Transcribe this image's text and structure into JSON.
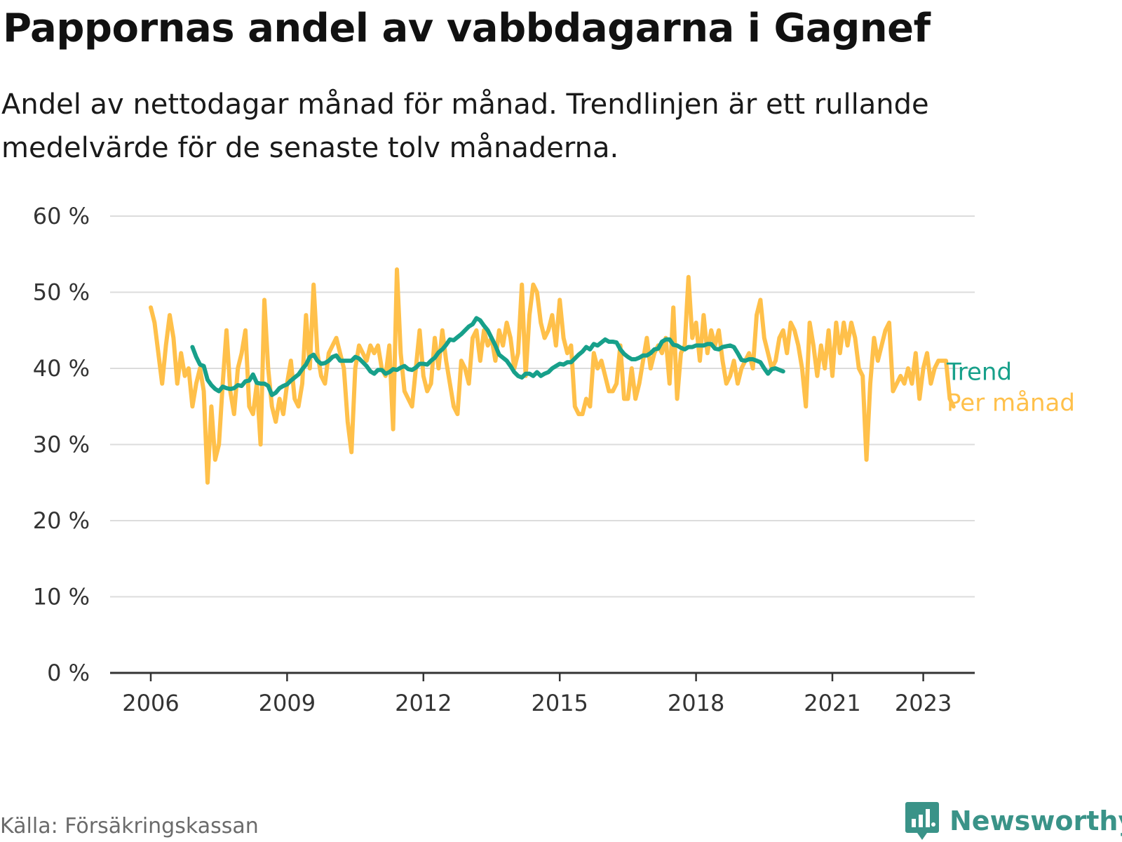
{
  "title": "Pappornas andel av vabbdagarna i Gagnef",
  "subtitle": "Andel av nettodagar månad för månad. Trendlinjen är ett rullande medelvärde för de senaste tolv månaderna.",
  "source": "Källa: Försäkringskassan",
  "brand": "Newsworthy",
  "colors": {
    "trend": "#17a08a",
    "monthly": "#ffc04a",
    "grid": "#dcdcdc",
    "axis": "#333333",
    "brand": "#3a9388"
  },
  "chart_data": {
    "type": "line",
    "title": "Pappornas andel av vabbdagarna i Gagnef",
    "ylabel": "",
    "xlabel": "",
    "ylim": [
      0,
      60
    ],
    "y_ticks": [
      0,
      10,
      20,
      30,
      40,
      50,
      60
    ],
    "y_tick_labels": [
      "0 %",
      "10 %",
      "20 %",
      "30 %",
      "40 %",
      "50 %",
      "60 %"
    ],
    "x_ticks": [
      2006,
      2009,
      2012,
      2015,
      2018,
      2021,
      2023
    ],
    "x_tick_labels": [
      "2006",
      "2009",
      "2012",
      "2015",
      "2018",
      "2021",
      "2023"
    ],
    "grid": true,
    "legend": "direct labels at line ends",
    "series": [
      {
        "name": "Per månad",
        "start": "2006-01",
        "values": [
          48,
          46,
          42,
          38,
          43,
          47,
          44,
          38,
          42,
          39,
          40,
          35,
          38,
          40,
          37,
          25,
          35,
          28,
          30,
          38,
          45,
          37,
          34,
          40,
          42,
          45,
          35,
          34,
          38,
          30,
          49,
          40,
          35,
          33,
          36,
          34,
          38,
          41,
          36,
          35,
          38,
          47,
          40,
          51,
          42,
          39,
          38,
          42,
          43,
          44,
          42,
          40,
          33,
          29,
          40,
          43,
          42,
          41,
          43,
          42,
          43,
          40,
          39,
          43,
          32,
          53,
          42,
          37,
          36,
          35,
          40,
          45,
          39,
          37,
          38,
          44,
          40,
          45,
          41,
          38,
          35,
          34,
          41,
          40,
          38,
          44,
          45,
          41,
          45,
          43,
          44,
          41,
          45,
          43,
          46,
          44,
          40,
          42,
          51,
          39,
          47,
          51,
          50,
          46,
          44,
          45,
          47,
          43,
          49,
          44,
          42,
          43,
          35,
          34,
          34,
          36,
          35,
          42,
          40,
          41,
          39,
          37,
          37,
          38,
          43,
          36,
          36,
          40,
          36,
          38,
          41,
          44,
          40,
          42,
          43,
          42,
          44,
          38,
          48,
          36,
          42,
          43,
          52,
          44,
          46,
          41,
          47,
          42,
          45,
          43,
          45,
          41,
          38,
          39,
          41,
          38,
          40,
          41,
          42,
          40,
          47,
          49,
          44,
          42,
          40,
          41,
          44,
          45,
          42,
          46,
          45,
          43,
          40,
          35,
          46,
          43,
          39,
          43,
          40,
          45,
          39,
          46,
          42,
          46,
          43,
          46,
          44,
          40,
          39,
          28,
          38,
          44,
          41,
          43,
          45,
          46,
          37,
          38,
          39,
          38,
          40,
          38,
          42,
          36,
          40,
          42,
          38,
          40,
          41,
          41,
          41,
          36,
          35
        ]
      },
      {
        "name": "Trend",
        "start": "2006-12",
        "values": [
          42.8,
          41.5,
          40.5,
          40.3,
          38.5,
          37.8,
          37.3,
          37.0,
          37.6,
          37.4,
          37.3,
          37.4,
          37.8,
          37.7,
          38.3,
          38.4,
          39.2,
          38.1,
          38.0,
          38.0,
          37.7,
          36.5,
          36.8,
          37.4,
          37.7,
          37.9,
          38.4,
          38.8,
          39.2,
          39.9,
          40.5,
          41.5,
          41.8,
          41.0,
          40.6,
          40.7,
          41.0,
          41.5,
          41.7,
          41.0,
          41.0,
          41.0,
          41.0,
          41.5,
          41.3,
          40.8,
          40.3,
          39.6,
          39.3,
          39.8,
          39.8,
          39.3,
          39.5,
          39.9,
          39.8,
          40.1,
          40.3,
          39.9,
          39.8,
          40.1,
          40.6,
          40.6,
          40.5,
          41.0,
          41.4,
          42.1,
          42.5,
          43.1,
          43.8,
          43.7,
          44.1,
          44.5,
          45.0,
          45.5,
          45.8,
          46.6,
          46.3,
          45.6,
          45.0,
          44.0,
          43.0,
          41.8,
          41.4,
          41.0,
          40.3,
          39.5,
          39.0,
          38.8,
          39.3,
          39.3,
          39.0,
          39.5,
          39.0,
          39.3,
          39.5,
          40.0,
          40.3,
          40.6,
          40.5,
          40.8,
          40.8,
          41.3,
          41.8,
          42.2,
          42.8,
          42.5,
          43.2,
          43.0,
          43.4,
          43.8,
          43.5,
          43.5,
          43.4,
          42.5,
          41.9,
          41.5,
          41.2,
          41.2,
          41.4,
          41.7,
          41.7,
          42.0,
          42.5,
          42.6,
          43.5,
          43.8,
          43.8,
          43.1,
          43.0,
          42.7,
          42.5,
          42.8,
          42.8,
          43.0,
          43.0,
          43.0,
          43.2,
          43.2,
          42.6,
          42.5,
          42.8,
          42.9,
          43.0,
          42.8,
          42.0,
          41.1,
          41.0,
          41.2,
          41.2,
          41.0,
          40.8,
          40.0,
          39.3,
          39.9,
          40.0,
          39.8,
          39.6
        ]
      }
    ]
  }
}
